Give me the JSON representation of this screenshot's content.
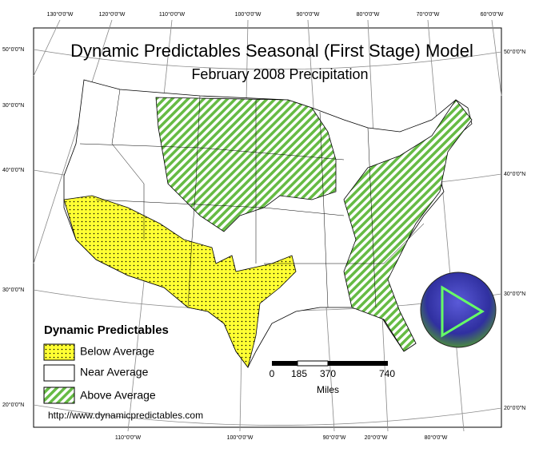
{
  "header": {
    "title": "Dynamic Predictables Seasonal (First Stage) Model",
    "subtitle": "February 2008 Precipitation"
  },
  "legend": {
    "title": "Dynamic Predictables",
    "items": [
      "Below Average",
      "Near Average",
      "Above Average"
    ]
  },
  "scale_bar": {
    "ticks": [
      0,
      185,
      370,
      740
    ],
    "unit": "Miles"
  },
  "graticule": {
    "top": [
      "130°0'0\"W",
      "120°0'0\"W",
      "110°0'0\"W",
      "100°0'0\"W",
      "90°0'0\"W",
      "80°0'0\"W",
      "70°0'0\"W",
      "60°0'0\"W"
    ],
    "bottom": [
      "110°0'0\"W",
      "100°0'0\"W",
      "90°0'0\"W",
      "20°0'0\"W",
      "80°0'0\"W"
    ],
    "left": [
      "50°0'0\"N",
      "30°0'0\"N",
      "40°0'0\"N",
      "30°0'0\"N",
      "20°0'0\"N"
    ],
    "right": [
      "50°0'0\"N",
      "40°0'0\"N",
      "30°0'0\"N",
      "20°0'0\"N"
    ]
  },
  "footer": {
    "url": "http://www.dynamicpredictables.com"
  }
}
